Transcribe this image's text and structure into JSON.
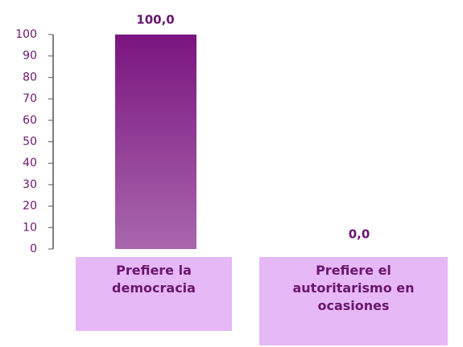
{
  "chart_data": {
    "type": "bar",
    "categories": [
      "Prefiere la democracia",
      "Prefiere el autoritarismo en ocasiones"
    ],
    "values": [
      100,
      0
    ],
    "value_labels": [
      "100,0",
      "0,0"
    ],
    "color": "#7a1580",
    "ylim": [
      0,
      100
    ],
    "yticks": [
      0,
      10,
      20,
      30,
      40,
      50,
      60,
      70,
      80,
      90,
      100
    ]
  }
}
